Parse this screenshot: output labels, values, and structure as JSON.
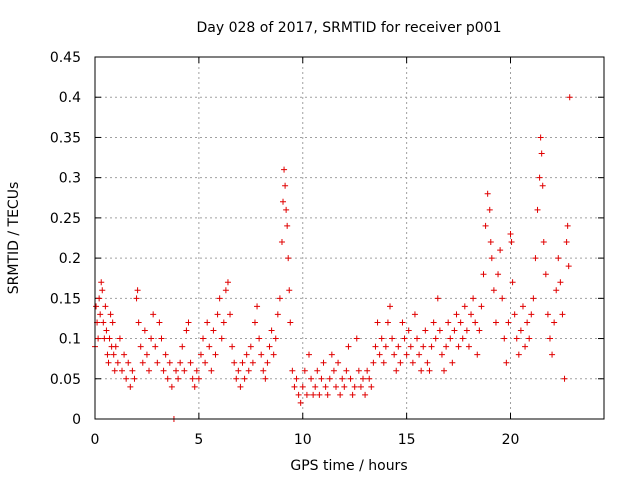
{
  "chart_data": {
    "type": "scatter",
    "title": "Day 028 of 2017, SRMTID for receiver p001",
    "xlabel": "GPS time / hours",
    "ylabel": "SRMTID / TECUs",
    "xlim": [
      0,
      24.5
    ],
    "ylim": [
      0,
      0.45
    ],
    "xticks": [
      0,
      5,
      10,
      15,
      20
    ],
    "xtick_labels": [
      "0",
      "5",
      "10",
      "15",
      "20"
    ],
    "yticks": [
      0,
      0.05,
      0.1,
      0.15,
      0.2,
      0.25,
      0.3,
      0.35,
      0.4,
      0.45
    ],
    "ytick_labels": [
      "0",
      "0.05",
      "0.1",
      "0.15",
      "0.2",
      "0.25",
      "0.3",
      "0.35",
      "0.4",
      "0.45"
    ],
    "grid": true,
    "marker": "+",
    "color": "#e00000",
    "series": [
      {
        "name": "SRMTID",
        "points": [
          [
            0.0,
            0.09
          ],
          [
            0.05,
            0.14
          ],
          [
            0.1,
            0.12
          ],
          [
            0.15,
            0.1
          ],
          [
            0.2,
            0.15
          ],
          [
            0.25,
            0.13
          ],
          [
            0.3,
            0.17
          ],
          [
            0.35,
            0.16
          ],
          [
            0.4,
            0.12
          ],
          [
            0.45,
            0.1
          ],
          [
            0.5,
            0.14
          ],
          [
            0.55,
            0.11
          ],
          [
            0.6,
            0.08
          ],
          [
            0.65,
            0.07
          ],
          [
            0.7,
            0.1
          ],
          [
            0.75,
            0.13
          ],
          [
            0.8,
            0.09
          ],
          [
            0.85,
            0.12
          ],
          [
            0.9,
            0.08
          ],
          [
            0.95,
            0.06
          ],
          [
            1.0,
            0.09
          ],
          [
            1.1,
            0.07
          ],
          [
            1.2,
            0.1
          ],
          [
            1.3,
            0.06
          ],
          [
            1.4,
            0.08
          ],
          [
            1.5,
            0.05
          ],
          [
            1.6,
            0.07
          ],
          [
            1.7,
            0.04
          ],
          [
            1.8,
            0.06
          ],
          [
            1.9,
            0.05
          ],
          [
            2.0,
            0.15
          ],
          [
            2.05,
            0.16
          ],
          [
            2.1,
            0.12
          ],
          [
            2.2,
            0.09
          ],
          [
            2.3,
            0.07
          ],
          [
            2.4,
            0.11
          ],
          [
            2.5,
            0.08
          ],
          [
            2.6,
            0.06
          ],
          [
            2.7,
            0.1
          ],
          [
            2.8,
            0.13
          ],
          [
            2.9,
            0.09
          ],
          [
            3.0,
            0.07
          ],
          [
            3.1,
            0.12
          ],
          [
            3.2,
            0.1
          ],
          [
            3.3,
            0.06
          ],
          [
            3.4,
            0.08
          ],
          [
            3.5,
            0.05
          ],
          [
            3.6,
            0.07
          ],
          [
            3.7,
            0.04
          ],
          [
            3.8,
            0.0
          ],
          [
            3.9,
            0.06
          ],
          [
            4.0,
            0.05
          ],
          [
            4.1,
            0.07
          ],
          [
            4.2,
            0.09
          ],
          [
            4.3,
            0.06
          ],
          [
            4.4,
            0.11
          ],
          [
            4.5,
            0.12
          ],
          [
            4.6,
            0.07
          ],
          [
            4.7,
            0.05
          ],
          [
            4.8,
            0.04
          ],
          [
            4.9,
            0.06
          ],
          [
            5.0,
            0.05
          ],
          [
            5.1,
            0.08
          ],
          [
            5.2,
            0.1
          ],
          [
            5.3,
            0.07
          ],
          [
            5.4,
            0.12
          ],
          [
            5.5,
            0.09
          ],
          [
            5.6,
            0.06
          ],
          [
            5.7,
            0.11
          ],
          [
            5.8,
            0.08
          ],
          [
            5.9,
            0.13
          ],
          [
            6.0,
            0.15
          ],
          [
            6.1,
            0.1
          ],
          [
            6.2,
            0.12
          ],
          [
            6.3,
            0.16
          ],
          [
            6.4,
            0.17
          ],
          [
            6.5,
            0.13
          ],
          [
            6.6,
            0.09
          ],
          [
            6.7,
            0.07
          ],
          [
            6.8,
            0.05
          ],
          [
            6.9,
            0.06
          ],
          [
            7.0,
            0.04
          ],
          [
            7.1,
            0.07
          ],
          [
            7.2,
            0.05
          ],
          [
            7.3,
            0.08
          ],
          [
            7.4,
            0.06
          ],
          [
            7.5,
            0.09
          ],
          [
            7.6,
            0.07
          ],
          [
            7.7,
            0.12
          ],
          [
            7.8,
            0.14
          ],
          [
            7.9,
            0.1
          ],
          [
            8.0,
            0.08
          ],
          [
            8.1,
            0.06
          ],
          [
            8.2,
            0.05
          ],
          [
            8.3,
            0.07
          ],
          [
            8.4,
            0.09
          ],
          [
            8.5,
            0.11
          ],
          [
            8.6,
            0.08
          ],
          [
            8.7,
            0.1
          ],
          [
            8.8,
            0.13
          ],
          [
            8.9,
            0.15
          ],
          [
            9.0,
            0.22
          ],
          [
            9.05,
            0.27
          ],
          [
            9.1,
            0.31
          ],
          [
            9.15,
            0.29
          ],
          [
            9.2,
            0.26
          ],
          [
            9.25,
            0.24
          ],
          [
            9.3,
            0.2
          ],
          [
            9.35,
            0.16
          ],
          [
            9.4,
            0.12
          ],
          [
            9.5,
            0.06
          ],
          [
            9.6,
            0.04
          ],
          [
            9.7,
            0.05
          ],
          [
            9.8,
            0.03
          ],
          [
            9.9,
            0.02
          ],
          [
            10.0,
            0.04
          ],
          [
            10.1,
            0.06
          ],
          [
            10.2,
            0.03
          ],
          [
            10.3,
            0.08
          ],
          [
            10.4,
            0.05
          ],
          [
            10.5,
            0.03
          ],
          [
            10.6,
            0.04
          ],
          [
            10.7,
            0.06
          ],
          [
            10.8,
            0.03
          ],
          [
            10.9,
            0.05
          ],
          [
            11.0,
            0.07
          ],
          [
            11.1,
            0.04
          ],
          [
            11.2,
            0.03
          ],
          [
            11.3,
            0.05
          ],
          [
            11.4,
            0.08
          ],
          [
            11.5,
            0.06
          ],
          [
            11.6,
            0.04
          ],
          [
            11.7,
            0.07
          ],
          [
            11.8,
            0.03
          ],
          [
            11.9,
            0.05
          ],
          [
            12.0,
            0.04
          ],
          [
            12.1,
            0.06
          ],
          [
            12.2,
            0.09
          ],
          [
            12.3,
            0.05
          ],
          [
            12.4,
            0.03
          ],
          [
            12.5,
            0.04
          ],
          [
            12.6,
            0.1
          ],
          [
            12.7,
            0.06
          ],
          [
            12.8,
            0.04
          ],
          [
            12.9,
            0.05
          ],
          [
            13.0,
            0.03
          ],
          [
            13.1,
            0.06
          ],
          [
            13.2,
            0.05
          ],
          [
            13.3,
            0.04
          ],
          [
            13.4,
            0.07
          ],
          [
            13.5,
            0.09
          ],
          [
            13.6,
            0.12
          ],
          [
            13.7,
            0.08
          ],
          [
            13.8,
            0.1
          ],
          [
            13.9,
            0.07
          ],
          [
            14.0,
            0.09
          ],
          [
            14.1,
            0.12
          ],
          [
            14.2,
            0.14
          ],
          [
            14.3,
            0.1
          ],
          [
            14.4,
            0.08
          ],
          [
            14.5,
            0.06
          ],
          [
            14.6,
            0.09
          ],
          [
            14.7,
            0.07
          ],
          [
            14.8,
            0.12
          ],
          [
            14.9,
            0.1
          ],
          [
            15.0,
            0.08
          ],
          [
            15.1,
            0.11
          ],
          [
            15.2,
            0.09
          ],
          [
            15.3,
            0.07
          ],
          [
            15.4,
            0.13
          ],
          [
            15.5,
            0.1
          ],
          [
            15.6,
            0.08
          ],
          [
            15.7,
            0.06
          ],
          [
            15.8,
            0.09
          ],
          [
            15.9,
            0.11
          ],
          [
            16.0,
            0.07
          ],
          [
            16.1,
            0.06
          ],
          [
            16.2,
            0.09
          ],
          [
            16.3,
            0.12
          ],
          [
            16.4,
            0.1
          ],
          [
            16.5,
            0.15
          ],
          [
            16.6,
            0.11
          ],
          [
            16.7,
            0.08
          ],
          [
            16.8,
            0.06
          ],
          [
            16.9,
            0.09
          ],
          [
            17.0,
            0.12
          ],
          [
            17.1,
            0.1
          ],
          [
            17.2,
            0.07
          ],
          [
            17.3,
            0.11
          ],
          [
            17.4,
            0.13
          ],
          [
            17.5,
            0.09
          ],
          [
            17.6,
            0.12
          ],
          [
            17.7,
            0.1
          ],
          [
            17.8,
            0.14
          ],
          [
            17.9,
            0.11
          ],
          [
            18.0,
            0.09
          ],
          [
            18.1,
            0.13
          ],
          [
            18.2,
            0.15
          ],
          [
            18.3,
            0.12
          ],
          [
            18.4,
            0.08
          ],
          [
            18.5,
            0.11
          ],
          [
            18.6,
            0.14
          ],
          [
            18.7,
            0.18
          ],
          [
            18.8,
            0.24
          ],
          [
            18.9,
            0.28
          ],
          [
            19.0,
            0.26
          ],
          [
            19.05,
            0.22
          ],
          [
            19.1,
            0.2
          ],
          [
            19.2,
            0.16
          ],
          [
            19.3,
            0.12
          ],
          [
            19.4,
            0.18
          ],
          [
            19.5,
            0.21
          ],
          [
            19.6,
            0.15
          ],
          [
            19.7,
            0.1
          ],
          [
            19.8,
            0.07
          ],
          [
            19.9,
            0.12
          ],
          [
            20.0,
            0.23
          ],
          [
            20.05,
            0.22
          ],
          [
            20.1,
            0.17
          ],
          [
            20.2,
            0.13
          ],
          [
            20.3,
            0.1
          ],
          [
            20.4,
            0.08
          ],
          [
            20.5,
            0.11
          ],
          [
            20.6,
            0.14
          ],
          [
            20.7,
            0.09
          ],
          [
            20.8,
            0.12
          ],
          [
            20.9,
            0.1
          ],
          [
            21.0,
            0.13
          ],
          [
            21.1,
            0.15
          ],
          [
            21.2,
            0.2
          ],
          [
            21.3,
            0.26
          ],
          [
            21.4,
            0.3
          ],
          [
            21.45,
            0.35
          ],
          [
            21.5,
            0.33
          ],
          [
            21.55,
            0.29
          ],
          [
            21.6,
            0.22
          ],
          [
            21.7,
            0.18
          ],
          [
            21.8,
            0.13
          ],
          [
            21.9,
            0.1
          ],
          [
            22.0,
            0.08
          ],
          [
            22.1,
            0.12
          ],
          [
            22.2,
            0.16
          ],
          [
            22.3,
            0.2
          ],
          [
            22.4,
            0.17
          ],
          [
            22.5,
            0.13
          ],
          [
            22.6,
            0.05
          ],
          [
            22.7,
            0.22
          ],
          [
            22.75,
            0.24
          ],
          [
            22.8,
            0.19
          ],
          [
            22.85,
            0.4
          ]
        ]
      }
    ]
  }
}
